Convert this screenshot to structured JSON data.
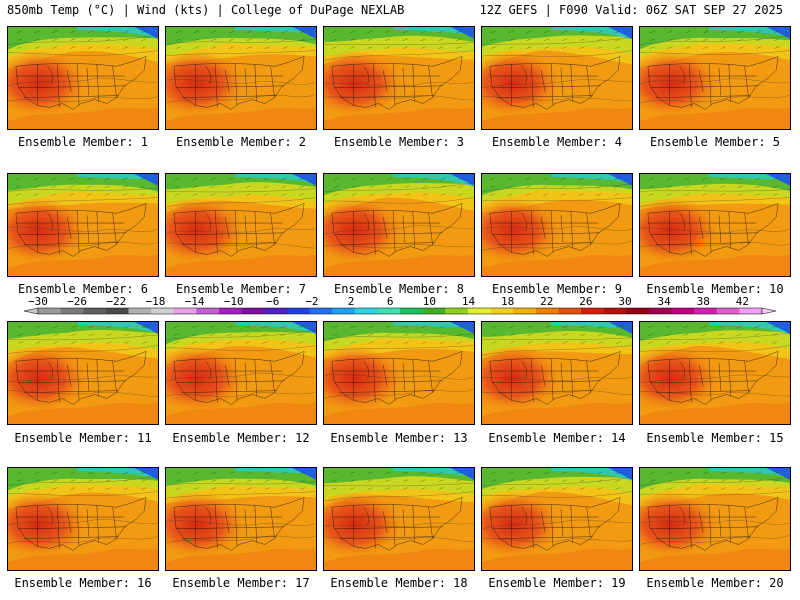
{
  "header": {
    "title": "850mb Temp (°C) | Wind (kts) | College of DuPage NEXLAB",
    "run_info": "12Z GEFS | F090 Valid: 06Z SAT SEP 27 2025"
  },
  "panels": [
    {
      "label": "Ensemble Member: 1"
    },
    {
      "label": "Ensemble Member: 2"
    },
    {
      "label": "Ensemble Member: 3"
    },
    {
      "label": "Ensemble Member: 4"
    },
    {
      "label": "Ensemble Member: 5"
    },
    {
      "label": "Ensemble Member: 6"
    },
    {
      "label": "Ensemble Member: 7"
    },
    {
      "label": "Ensemble Member: 8"
    },
    {
      "label": "Ensemble Member: 9"
    },
    {
      "label": "Ensemble Member: 10"
    },
    {
      "label": "Ensemble Member: 11"
    },
    {
      "label": "Ensemble Member: 12"
    },
    {
      "label": "Ensemble Member: 13"
    },
    {
      "label": "Ensemble Member: 14"
    },
    {
      "label": "Ensemble Member: 15"
    },
    {
      "label": "Ensemble Member: 16"
    },
    {
      "label": "Ensemble Member: 17"
    },
    {
      "label": "Ensemble Member: 18"
    },
    {
      "label": "Ensemble Member: 19"
    },
    {
      "label": "Ensemble Member: 20"
    }
  ],
  "colorbar": {
    "labels": [
      "−30",
      "−26",
      "−22",
      "−18",
      "−14",
      "−10",
      "−6",
      "−2",
      "2",
      "6",
      "10",
      "14",
      "18",
      "22",
      "26",
      "30",
      "34",
      "38",
      "42"
    ],
    "colors": [
      "#9a9a9a",
      "#7a7a7a",
      "#5e5e5e",
      "#4a4a4a",
      "#b0b0b0",
      "#d0d0d0",
      "#e6a0e6",
      "#c060d0",
      "#a020c0",
      "#7a10a0",
      "#5020c0",
      "#2040e0",
      "#2070f0",
      "#20a0f0",
      "#30d0e0",
      "#40e0b0",
      "#20c060",
      "#40b020",
      "#90d020",
      "#e0f030",
      "#f0d020",
      "#f0b010",
      "#f08000",
      "#e05010",
      "#d02010",
      "#b01010",
      "#900010",
      "#a00050",
      "#c00080",
      "#d020b0",
      "#e060d0",
      "#f0a0f0"
    ],
    "arrow_colors": [
      "#c8c8c8",
      "#f5c8f5"
    ]
  }
}
